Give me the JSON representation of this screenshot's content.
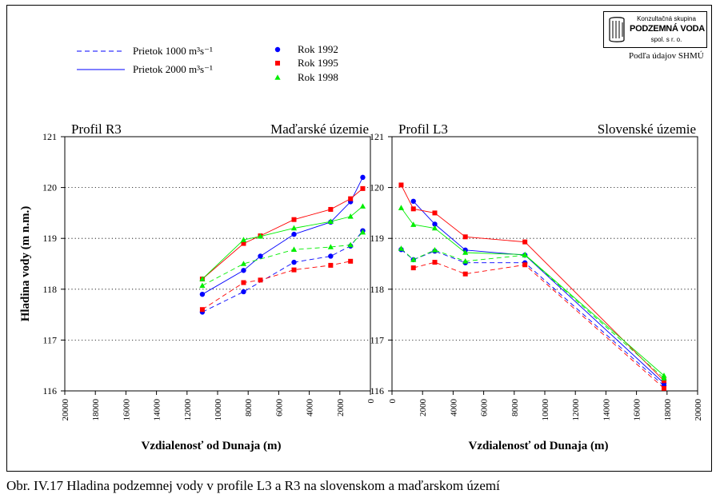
{
  "caption": "Obr. IV.17 Hladina podzemnej vody v profile L3 a R3 na slovenskom a maďarskom území",
  "logo": {
    "line1": "Konzultačná skupina",
    "line2": "PODZEMNÁ VODA",
    "line3": "spol. s r. o."
  },
  "source_note": "Podľa údajov SHMÚ",
  "colors": {
    "1992": "#0000ff",
    "1995": "#ff0000",
    "1998": "#00ee00"
  },
  "legend": {
    "line_1000": "Prietok 1000 m³s⁻¹",
    "line_2000": "Prietok 2000 m³s⁻¹",
    "year_1992": "Rok  1992",
    "year_1995": "Rok  1995",
    "year_1998": "Rok  1998"
  },
  "chart_data": [
    {
      "type": "line",
      "panel": "left",
      "title_left": "Profil R3",
      "title_right": "Maďarské územie",
      "xlabel": "Vzdialenosť od Dunaja (m)",
      "ylabel": "Hladina vody (m n.m.)",
      "xlim": [
        20000,
        0
      ],
      "ylim": [
        116,
        121
      ],
      "x_ticks": [
        20000,
        18000,
        16000,
        14000,
        12000,
        10000,
        8000,
        6000,
        4000,
        2000,
        0
      ],
      "y_ticks": [
        116,
        117,
        118,
        119,
        120,
        121
      ],
      "grid": "horizontal dotted",
      "series": [
        {
          "year": "1992",
          "flow": "1000",
          "marker": "circle",
          "points": [
            [
              11000,
              117.55
            ],
            [
              8300,
              117.95
            ],
            [
              5000,
              118.53
            ],
            [
              2600,
              118.65
            ],
            [
              1300,
              118.85
            ],
            [
              500,
              119.15
            ]
          ]
        },
        {
          "year": "1992",
          "flow": "2000",
          "marker": "circle",
          "points": [
            [
              11000,
              117.9
            ],
            [
              8300,
              118.37
            ],
            [
              7200,
              118.65
            ],
            [
              5000,
              119.08
            ],
            [
              2600,
              119.32
            ],
            [
              1300,
              119.72
            ],
            [
              500,
              120.2
            ]
          ]
        },
        {
          "year": "1995",
          "flow": "1000",
          "marker": "square",
          "points": [
            [
              11000,
              117.6
            ],
            [
              8300,
              118.13
            ],
            [
              7200,
              118.18
            ],
            [
              5000,
              118.38
            ],
            [
              2600,
              118.47
            ],
            [
              1300,
              118.55
            ]
          ]
        },
        {
          "year": "1995",
          "flow": "2000",
          "marker": "square",
          "points": [
            [
              11000,
              118.2
            ],
            [
              8300,
              118.9
            ],
            [
              7200,
              119.05
            ],
            [
              5000,
              119.37
            ],
            [
              2600,
              119.57
            ],
            [
              1300,
              119.78
            ],
            [
              500,
              119.98
            ]
          ]
        },
        {
          "year": "1998",
          "flow": "1000",
          "marker": "triangle",
          "points": [
            [
              11000,
              118.07
            ],
            [
              8300,
              118.5
            ],
            [
              5000,
              118.78
            ],
            [
              2600,
              118.83
            ],
            [
              1300,
              118.87
            ],
            [
              500,
              119.12
            ]
          ]
        },
        {
          "year": "1998",
          "flow": "2000",
          "marker": "triangle",
          "points": [
            [
              11000,
              118.2
            ],
            [
              8300,
              118.97
            ],
            [
              7200,
              119.04
            ],
            [
              5000,
              119.2
            ],
            [
              2600,
              119.33
            ],
            [
              1300,
              119.43
            ],
            [
              500,
              119.63
            ]
          ]
        }
      ]
    },
    {
      "type": "line",
      "panel": "right",
      "title_left": "Profil L3",
      "title_right": "Slovenské územie",
      "xlabel": "Vzdialenosť od Dunaja (m)",
      "xlim": [
        0,
        20000
      ],
      "ylim": [
        116,
        121
      ],
      "x_ticks": [
        0,
        2000,
        4000,
        6000,
        8000,
        10000,
        12000,
        14000,
        16000,
        18000,
        20000
      ],
      "y_ticks": [
        116,
        117,
        118,
        119,
        120,
        121
      ],
      "grid": "horizontal dotted",
      "series": [
        {
          "year": "1992",
          "flow": "1000",
          "marker": "circle",
          "points": [
            [
              600,
              118.78
            ],
            [
              1400,
              118.58
            ],
            [
              2800,
              118.75
            ],
            [
              4800,
              118.52
            ],
            [
              8700,
              118.52
            ],
            [
              17800,
              116.1
            ]
          ]
        },
        {
          "year": "1992",
          "flow": "2000",
          "marker": "circle",
          "points": [
            [
              1400,
              119.73
            ],
            [
              2800,
              119.28
            ],
            [
              4800,
              118.77
            ],
            [
              8700,
              118.67
            ],
            [
              17800,
              116.15
            ]
          ]
        },
        {
          "year": "1995",
          "flow": "1000",
          "marker": "square",
          "points": [
            [
              1400,
              118.42
            ],
            [
              2800,
              118.53
            ],
            [
              4800,
              118.3
            ],
            [
              8700,
              118.48
            ],
            [
              17800,
              116.05
            ]
          ]
        },
        {
          "year": "1995",
          "flow": "2000",
          "marker": "square",
          "points": [
            [
              600,
              120.05
            ],
            [
              1400,
              119.58
            ],
            [
              2800,
              119.5
            ],
            [
              4800,
              119.03
            ],
            [
              8700,
              118.93
            ],
            [
              17800,
              116.2
            ]
          ]
        },
        {
          "year": "1998",
          "flow": "1000",
          "marker": "triangle",
          "points": [
            [
              600,
              118.8
            ],
            [
              1400,
              118.58
            ],
            [
              2800,
              118.77
            ],
            [
              4800,
              118.55
            ],
            [
              8700,
              118.67
            ],
            [
              17800,
              116.25
            ]
          ]
        },
        {
          "year": "1998",
          "flow": "2000",
          "marker": "triangle",
          "points": [
            [
              600,
              119.6
            ],
            [
              1400,
              119.27
            ],
            [
              2800,
              119.2
            ],
            [
              4800,
              118.72
            ],
            [
              8700,
              118.68
            ],
            [
              17800,
              116.3
            ]
          ]
        }
      ]
    }
  ]
}
